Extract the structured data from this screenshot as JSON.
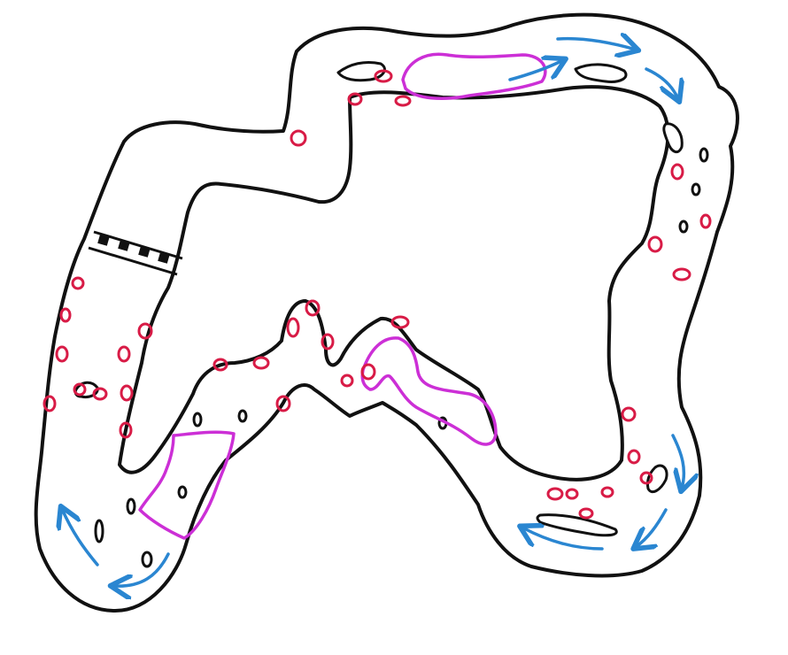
{
  "sketch": {
    "colors": {
      "outline": "#111111",
      "hazard": "#d81b46",
      "zone": "#cc2fd6",
      "flow": "#2a86d1",
      "background": "#ffffff"
    },
    "layers": [
      {
        "id": "track-outline",
        "kind": "closed-loop",
        "color_key": "outline"
      },
      {
        "id": "inner-islands",
        "kind": "obstacles",
        "color_key": "outline"
      },
      {
        "id": "hazard-markers",
        "kind": "small-rings",
        "color_key": "hazard"
      },
      {
        "id": "highlight-zones",
        "kind": "regions",
        "count": 3,
        "color_key": "zone"
      },
      {
        "id": "flow-arrows",
        "kind": "direction-arrows",
        "count": 8,
        "color_key": "flow"
      },
      {
        "id": "start-finish-gate",
        "kind": "checkered-line",
        "color_key": "outline"
      }
    ]
  }
}
